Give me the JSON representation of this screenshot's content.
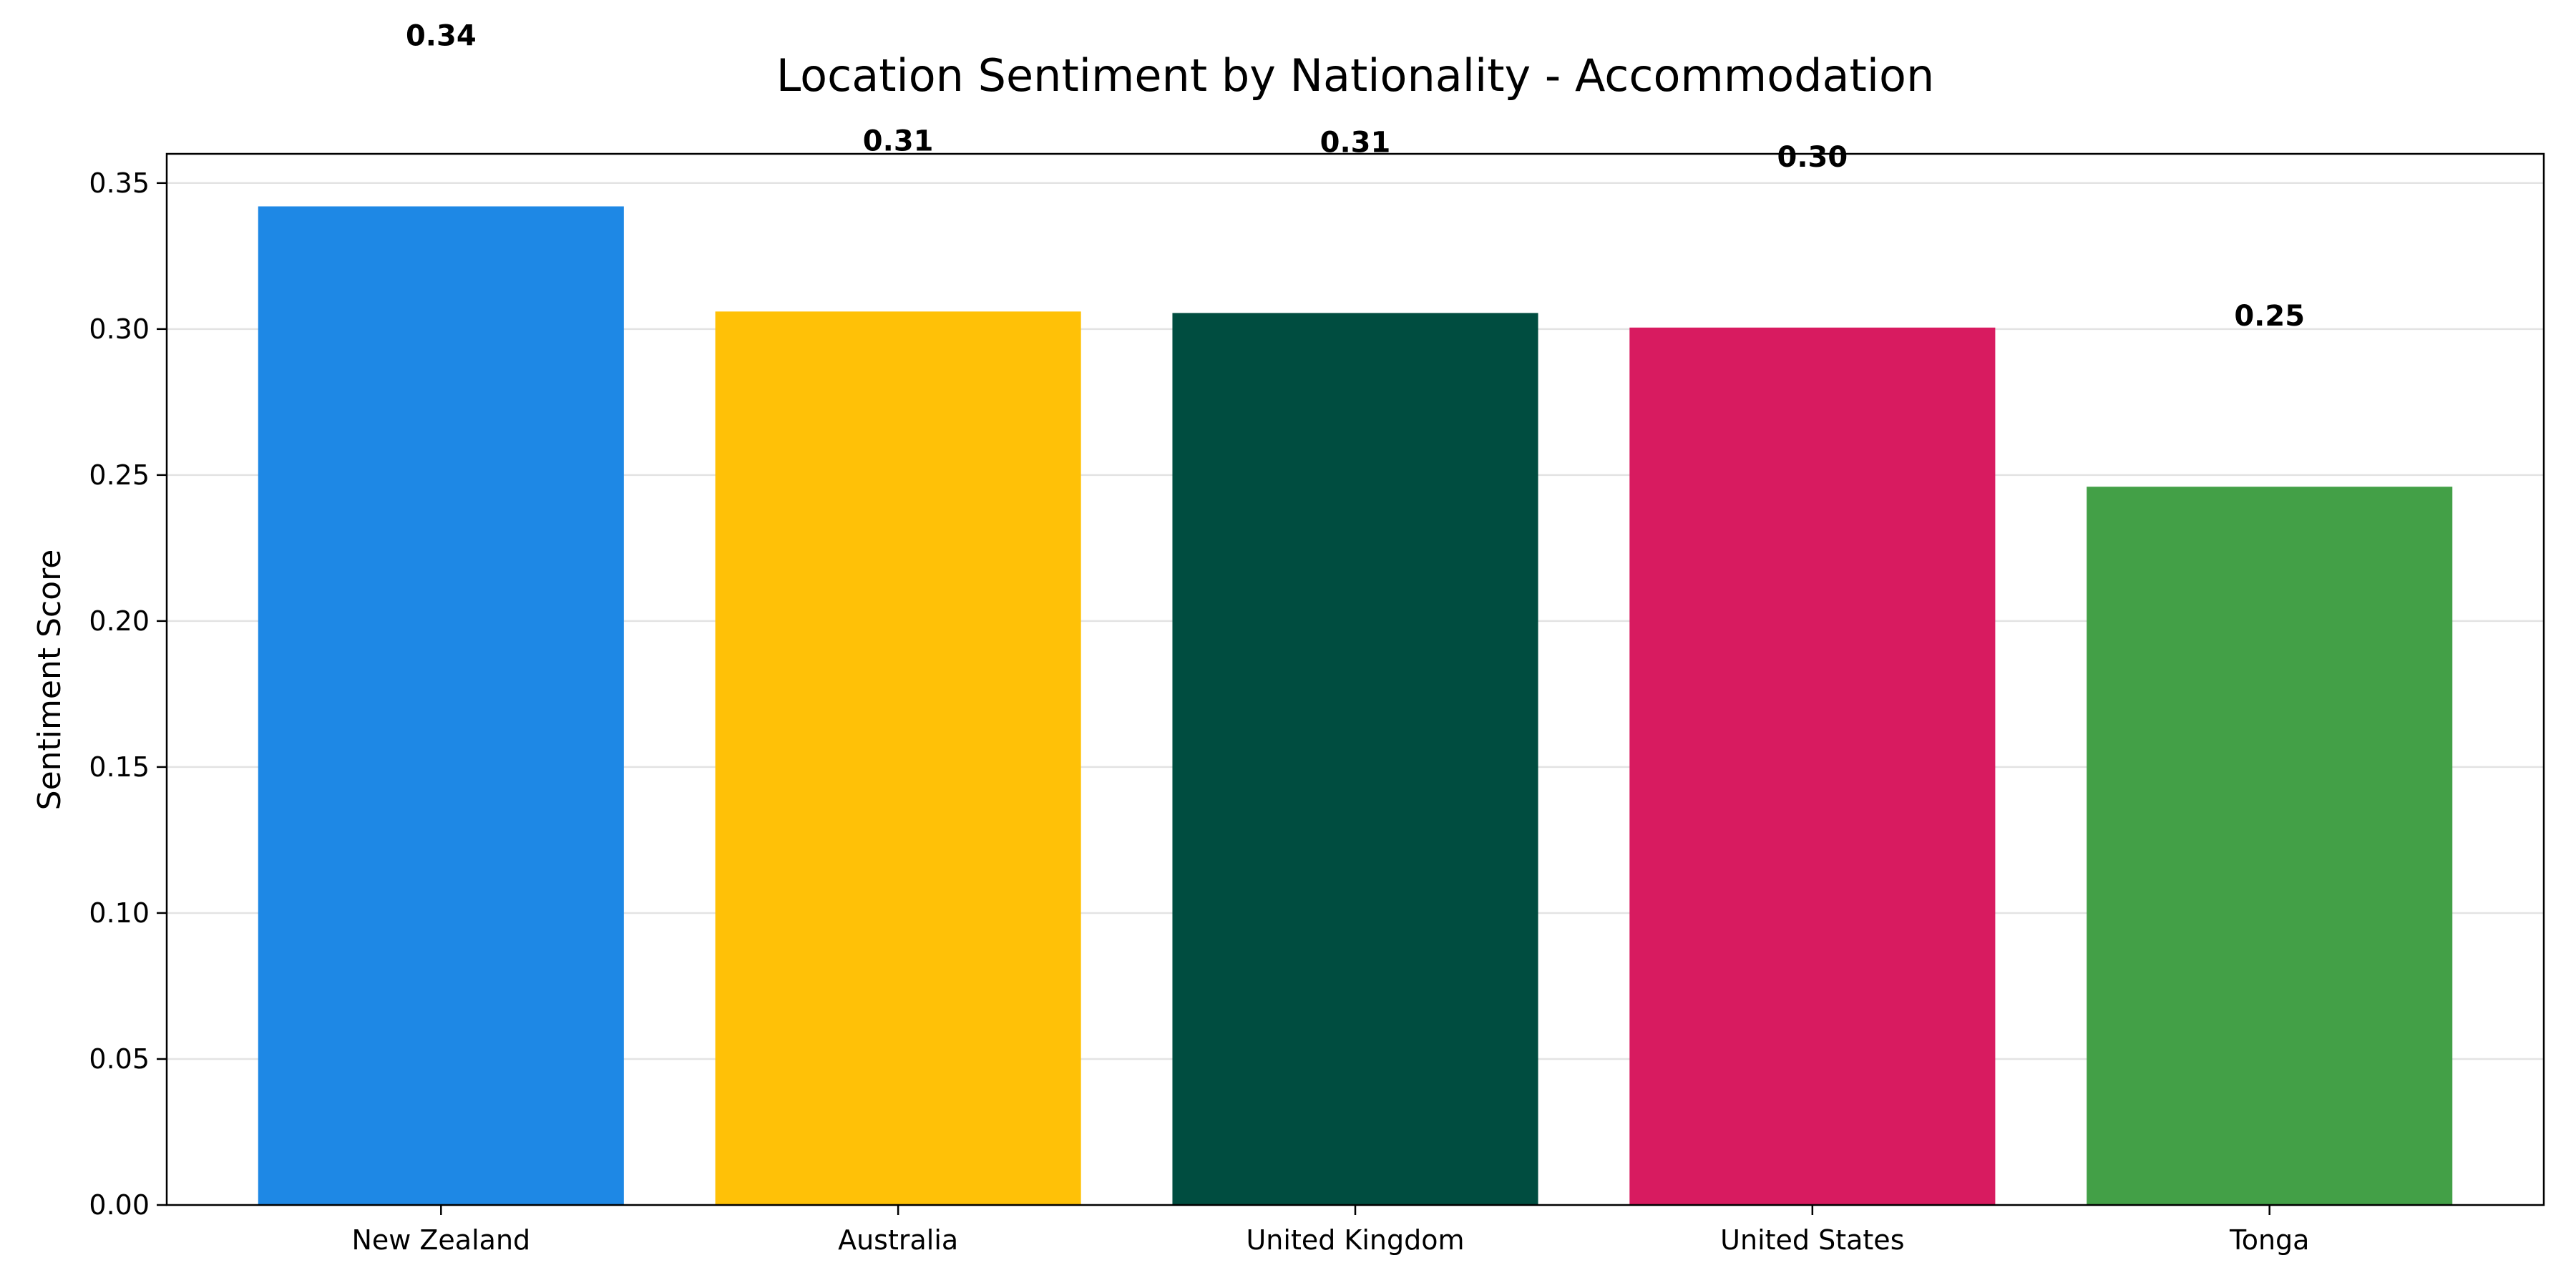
{
  "chart_data": {
    "type": "bar",
    "title": "Location Sentiment by Nationality - Accommodation",
    "xlabel": "",
    "ylabel": "Sentiment Score",
    "categories": [
      "New Zealand",
      "Australia",
      "United Kingdom",
      "United States",
      "Tonga"
    ],
    "values": [
      0.342,
      0.306,
      0.3055,
      0.3005,
      0.246
    ],
    "value_labels": [
      "0.34",
      "0.31",
      "0.31",
      "0.30",
      "0.25"
    ],
    "colors": [
      "#1e88e5",
      "#ffc107",
      "#004d40",
      "#d81b60",
      "#43a047"
    ],
    "ylim": [
      0,
      0.36
    ],
    "yticks": [
      0.0,
      0.05,
      0.1,
      0.15,
      0.2,
      0.25,
      0.3,
      0.35
    ],
    "ytick_labels": [
      "0.00",
      "0.05",
      "0.10",
      "0.15",
      "0.20",
      "0.25",
      "0.30",
      "0.35"
    ],
    "grid": "y",
    "legend": "none"
  }
}
